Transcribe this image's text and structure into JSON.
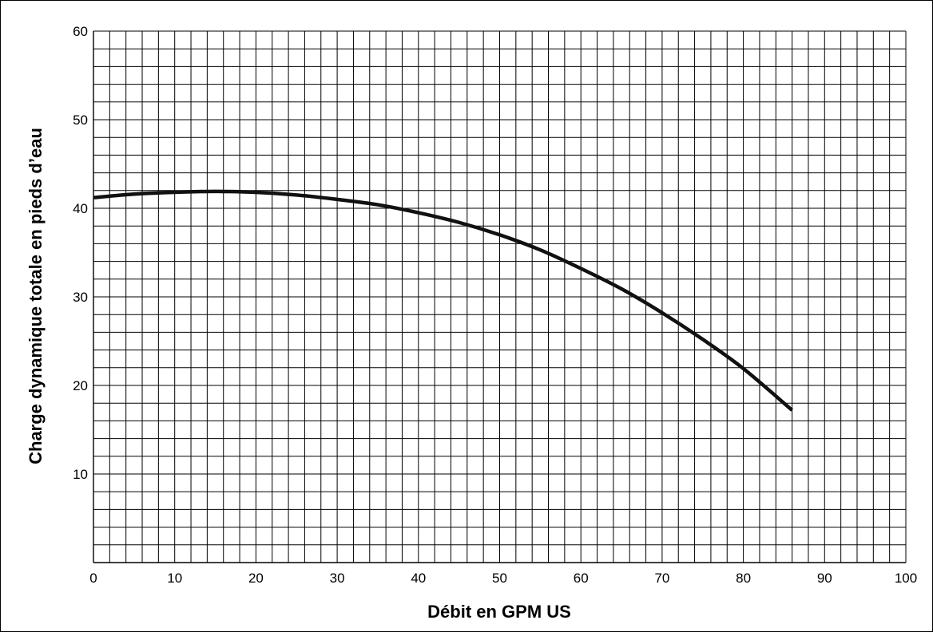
{
  "chart_data": {
    "type": "line",
    "xlabel": "Débit en GPM US",
    "ylabel": "Charge dynamique totale en pieds d’eau",
    "xlim": [
      0,
      100
    ],
    "ylim": [
      0,
      60
    ],
    "x_ticks": [
      "0",
      "10",
      "20",
      "30",
      "40",
      "50",
      "60",
      "70",
      "80",
      "90",
      "100"
    ],
    "y_ticks": [
      "10",
      "20",
      "30",
      "40",
      "50",
      "60"
    ],
    "grid": true,
    "grid_minor_x_step": 2,
    "grid_minor_y_step": 2,
    "series": [
      {
        "x": [
          0,
          5,
          10,
          15,
          20,
          25,
          30,
          35,
          40,
          45,
          50,
          55,
          60,
          65,
          70,
          75,
          80,
          86
        ],
        "y": [
          41.2,
          41.6,
          41.8,
          41.9,
          41.8,
          41.5,
          41.0,
          40.4,
          39.5,
          38.4,
          37.0,
          35.3,
          33.2,
          30.9,
          28.2,
          25.2,
          21.9,
          17.2
        ]
      }
    ],
    "line_color": "#111111"
  }
}
